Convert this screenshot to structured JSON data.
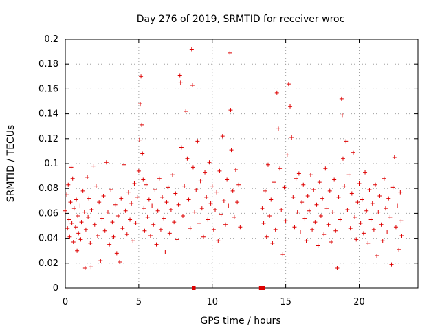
{
  "chart_data": {
    "type": "scatter",
    "title": "Day 276 of 2019, SRMTID for receiver wroc",
    "xlabel": "GPS time / hours",
    "ylabel": "SRMTID / TECUs",
    "xlim": [
      0,
      24
    ],
    "ylim": [
      0,
      0.2
    ],
    "x_ticks": [
      0,
      5,
      10,
      15,
      20
    ],
    "x_tick_labels": [
      "0",
      "5",
      "10",
      "15",
      "20"
    ],
    "y_ticks": [
      0,
      0.02,
      0.04,
      0.06,
      0.08,
      0.1,
      0.12,
      0.14,
      0.16,
      0.18,
      0.2
    ],
    "y_tick_labels": [
      "0",
      "0.02",
      "0.04",
      "0.06",
      "0.08",
      "0.1",
      "0.12",
      "0.14",
      "0.16",
      "0.18",
      "0.2"
    ],
    "grid": true,
    "marker": "+",
    "color": "#dd0000",
    "series": [
      {
        "name": "SRMTID",
        "points": [
          [
            0.0,
            0.062
          ],
          [
            0.1,
            0.075
          ],
          [
            0.15,
            0.048
          ],
          [
            0.2,
            0.083
          ],
          [
            0.25,
            0.055
          ],
          [
            0.3,
            0.041
          ],
          [
            0.35,
            0.069
          ],
          [
            0.4,
            0.097
          ],
          [
            0.45,
            0.052
          ],
          [
            0.5,
            0.088
          ],
          [
            0.55,
            0.037
          ],
          [
            0.6,
            0.064
          ],
          [
            0.7,
            0.049
          ],
          [
            0.75,
            0.071
          ],
          [
            0.8,
            0.03
          ],
          [
            0.85,
            0.058
          ],
          [
            0.9,
            0.044
          ],
          [
            1.0,
            0.066
          ],
          [
            1.05,
            0.039
          ],
          [
            1.1,
            0.053
          ],
          [
            1.2,
            0.078
          ],
          [
            1.3,
            0.061
          ],
          [
            1.35,
            0.016
          ],
          [
            1.4,
            0.047
          ],
          [
            1.5,
            0.089
          ],
          [
            1.55,
            0.057
          ],
          [
            1.6,
            0.072
          ],
          [
            1.7,
            0.036
          ],
          [
            1.75,
            0.017
          ],
          [
            1.8,
            0.063
          ],
          [
            1.9,
            0.098
          ],
          [
            2.0,
            0.051
          ],
          [
            2.1,
            0.082
          ],
          [
            2.2,
            0.042
          ],
          [
            2.3,
            0.069
          ],
          [
            2.4,
            0.022
          ],
          [
            2.5,
            0.056
          ],
          [
            2.6,
            0.074
          ],
          [
            2.7,
            0.046
          ],
          [
            2.8,
            0.101
          ],
          [
            2.9,
            0.061
          ],
          [
            3.0,
            0.035
          ],
          [
            3.1,
            0.079
          ],
          [
            3.2,
            0.053
          ],
          [
            3.3,
            0.041
          ],
          [
            3.4,
            0.067
          ],
          [
            3.5,
            0.028
          ],
          [
            3.6,
            0.058
          ],
          [
            3.7,
            0.021
          ],
          [
            3.8,
            0.072
          ],
          [
            3.9,
            0.048
          ],
          [
            4.0,
            0.099
          ],
          [
            4.1,
            0.062
          ],
          [
            4.2,
            0.043
          ],
          [
            4.3,
            0.077
          ],
          [
            4.4,
            0.055
          ],
          [
            4.5,
            0.068
          ],
          [
            4.6,
            0.038
          ],
          [
            4.7,
            0.084
          ],
          [
            4.8,
            0.052
          ],
          [
            4.9,
            0.073
          ],
          [
            5.0,
            0.094
          ],
          [
            5.05,
            0.119
          ],
          [
            5.1,
            0.148
          ],
          [
            5.15,
            0.17
          ],
          [
            5.2,
            0.131
          ],
          [
            5.25,
            0.108
          ],
          [
            5.3,
            0.087
          ],
          [
            5.35,
            0.064
          ],
          [
            5.4,
            0.046
          ],
          [
            5.5,
            0.083
          ],
          [
            5.6,
            0.057
          ],
          [
            5.7,
            0.071
          ],
          [
            5.8,
            0.042
          ],
          [
            5.9,
            0.066
          ],
          [
            6.0,
            0.051
          ],
          [
            6.1,
            0.079
          ],
          [
            6.2,
            0.035
          ],
          [
            6.3,
            0.062
          ],
          [
            6.4,
            0.088
          ],
          [
            6.5,
            0.047
          ],
          [
            6.6,
            0.073
          ],
          [
            6.7,
            0.056
          ],
          [
            6.8,
            0.029
          ],
          [
            6.9,
            0.069
          ],
          [
            7.0,
            0.081
          ],
          [
            7.1,
            0.044
          ],
          [
            7.2,
            0.063
          ],
          [
            7.3,
            0.091
          ],
          [
            7.4,
            0.053
          ],
          [
            7.5,
            0.076
          ],
          [
            7.6,
            0.039
          ],
          [
            7.7,
            0.067
          ],
          [
            7.8,
            0.171
          ],
          [
            7.85,
            0.165
          ],
          [
            7.9,
            0.113
          ],
          [
            8.0,
            0.058
          ],
          [
            8.1,
            0.082
          ],
          [
            8.2,
            0.142
          ],
          [
            8.3,
            0.104
          ],
          [
            8.4,
            0.071
          ],
          [
            8.5,
            0.048
          ],
          [
            8.6,
            0.192
          ],
          [
            8.65,
            0.163
          ],
          [
            8.7,
            0.097
          ],
          [
            8.8,
            0.061
          ],
          [
            8.9,
            0.079
          ],
          [
            9.0,
            0.118
          ],
          [
            9.1,
            0.052
          ],
          [
            9.2,
            0.086
          ],
          [
            9.3,
            0.064
          ],
          [
            9.4,
            0.041
          ],
          [
            9.5,
            0.093
          ],
          [
            9.6,
            0.073
          ],
          [
            9.7,
            0.055
          ],
          [
            9.8,
            0.101
          ],
          [
            9.9,
            0.068
          ],
          [
            10.0,
            0.082
          ],
          [
            10.1,
            0.047
          ],
          [
            10.2,
            0.063
          ],
          [
            10.3,
            0.077
          ],
          [
            10.4,
            0.038
          ],
          [
            10.5,
            0.094
          ],
          [
            10.6,
            0.059
          ],
          [
            10.7,
            0.122
          ],
          [
            10.8,
            0.07
          ],
          [
            10.9,
            0.051
          ],
          [
            11.0,
            0.087
          ],
          [
            11.1,
            0.066
          ],
          [
            11.2,
            0.189
          ],
          [
            11.25,
            0.143
          ],
          [
            11.3,
            0.111
          ],
          [
            11.4,
            0.078
          ],
          [
            11.5,
            0.057
          ],
          [
            11.6,
            0.095
          ],
          [
            11.7,
            0.069
          ],
          [
            11.8,
            0.083
          ],
          [
            11.9,
            0.049
          ],
          [
            13.4,
            0.064
          ],
          [
            13.5,
            0.052
          ],
          [
            13.6,
            0.078
          ],
          [
            13.7,
            0.041
          ],
          [
            13.8,
            0.099
          ],
          [
            13.9,
            0.058
          ],
          [
            14.0,
            0.071
          ],
          [
            14.1,
            0.036
          ],
          [
            14.2,
            0.085
          ],
          [
            14.3,
            0.047
          ],
          [
            14.4,
            0.157
          ],
          [
            14.5,
            0.128
          ],
          [
            14.6,
            0.096
          ],
          [
            14.7,
            0.063
          ],
          [
            14.8,
            0.027
          ],
          [
            14.9,
            0.081
          ],
          [
            15.0,
            0.054
          ],
          [
            15.1,
            0.107
          ],
          [
            15.2,
            0.164
          ],
          [
            15.3,
            0.146
          ],
          [
            15.4,
            0.121
          ],
          [
            15.5,
            0.073
          ],
          [
            15.6,
            0.049
          ],
          [
            15.7,
            0.088
          ],
          [
            15.8,
            0.061
          ],
          [
            15.9,
            0.092
          ],
          [
            16.0,
            0.045
          ],
          [
            16.1,
            0.069
          ],
          [
            16.2,
            0.083
          ],
          [
            16.3,
            0.056
          ],
          [
            16.4,
            0.038
          ],
          [
            16.5,
            0.074
          ],
          [
            16.6,
            0.062
          ],
          [
            16.7,
            0.091
          ],
          [
            16.8,
            0.047
          ],
          [
            16.9,
            0.079
          ],
          [
            17.0,
            0.053
          ],
          [
            17.1,
            0.067
          ],
          [
            17.2,
            0.034
          ],
          [
            17.3,
            0.085
          ],
          [
            17.4,
            0.058
          ],
          [
            17.5,
            0.072
          ],
          [
            17.6,
            0.043
          ],
          [
            17.7,
            0.096
          ],
          [
            17.8,
            0.064
          ],
          [
            17.9,
            0.051
          ],
          [
            18.0,
            0.078
          ],
          [
            18.1,
            0.037
          ],
          [
            18.2,
            0.061
          ],
          [
            18.3,
            0.087
          ],
          [
            18.4,
            0.046
          ],
          [
            18.5,
            0.016
          ],
          [
            18.6,
            0.073
          ],
          [
            18.7,
            0.055
          ],
          [
            18.8,
            0.152
          ],
          [
            18.85,
            0.139
          ],
          [
            18.9,
            0.104
          ],
          [
            19.0,
            0.082
          ],
          [
            19.1,
            0.118
          ],
          [
            19.2,
            0.063
          ],
          [
            19.3,
            0.091
          ],
          [
            19.4,
            0.048
          ],
          [
            19.5,
            0.076
          ],
          [
            19.6,
            0.109
          ],
          [
            19.7,
            0.057
          ],
          [
            19.8,
            0.039
          ],
          [
            19.9,
            0.069
          ],
          [
            20.0,
            0.084
          ],
          [
            20.1,
            0.052
          ],
          [
            20.2,
            0.071
          ],
          [
            20.3,
            0.044
          ],
          [
            20.4,
            0.093
          ],
          [
            20.5,
            0.062
          ],
          [
            20.6,
            0.036
          ],
          [
            20.7,
            0.079
          ],
          [
            20.8,
            0.055
          ],
          [
            20.9,
            0.068
          ],
          [
            21.0,
            0.047
          ],
          [
            21.1,
            0.083
          ],
          [
            21.2,
            0.026
          ],
          [
            21.3,
            0.061
          ],
          [
            21.4,
            0.074
          ],
          [
            21.5,
            0.051
          ],
          [
            21.6,
            0.038
          ],
          [
            21.7,
            0.088
          ],
          [
            21.8,
            0.064
          ],
          [
            21.9,
            0.045
          ],
          [
            22.0,
            0.072
          ],
          [
            22.1,
            0.057
          ],
          [
            22.2,
            0.019
          ],
          [
            22.3,
            0.081
          ],
          [
            22.4,
            0.105
          ],
          [
            22.5,
            0.049
          ],
          [
            22.6,
            0.066
          ],
          [
            22.7,
            0.031
          ],
          [
            22.8,
            0.077
          ],
          [
            22.85,
            0.054
          ],
          [
            22.9,
            0.042
          ]
        ]
      }
    ],
    "gap_markers": [
      8.75,
      13.3,
      13.45
    ]
  }
}
